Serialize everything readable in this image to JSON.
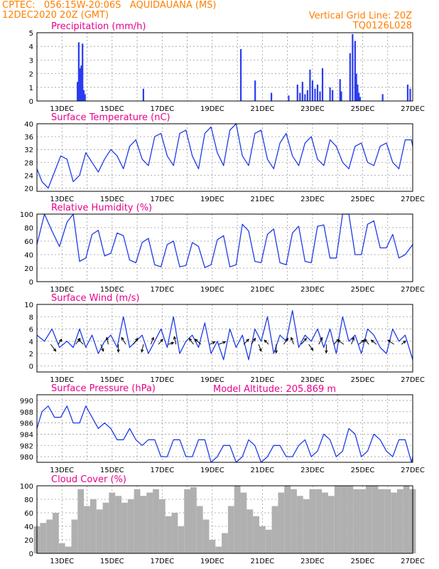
{
  "header": {
    "line1_left": "CPTEC:   056:15W-20:06S   AQUIDAUANA (MS)",
    "line2_left": "12DEC2020 20Z (GMT)",
    "line1_right": "Vertical Grid Line: 20Z",
    "line2_right": "TQ0126L028"
  },
  "colors": {
    "header": "#ff7f00",
    "title": "#e8008c",
    "series": "#1f3be8",
    "bars": "#2a3cf0",
    "cloud": "#b0b0b0"
  },
  "x_labels": [
    "13DEC",
    "15DEC",
    "17DEC",
    "19DEC",
    "21DEC",
    "23DEC",
    "25DEC",
    "27DEC"
  ],
  "x_label_days": [
    1,
    3,
    5,
    7,
    9,
    11,
    13,
    15
  ],
  "x_range_days": [
    0,
    15
  ],
  "model_altitude": "Model Altitude: 205.869 m",
  "chart_data": [
    {
      "type": "bar",
      "title": "Precipitation (mm/h)",
      "ylim": [
        0,
        5
      ],
      "yticks": [
        0,
        1,
        2,
        3,
        4,
        5
      ],
      "x_unit": "days since 12DEC2020 20Z",
      "x": [
        1.62,
        1.67,
        1.72,
        1.77,
        1.82,
        1.87,
        1.92,
        4.25,
        8.14,
        8.71,
        9.36,
        10.05,
        10.4,
        10.5,
        10.6,
        10.7,
        10.8,
        10.9,
        11.0,
        11.1,
        11.2,
        11.3,
        11.4,
        11.7,
        11.8,
        12.1,
        12.15,
        12.5,
        12.6,
        12.7,
        12.75,
        12.8,
        12.85,
        12.9,
        13.8,
        14.8,
        14.9
      ],
      "values": [
        1.4,
        4.3,
        2.4,
        2.6,
        4.2,
        0.8,
        0.5,
        0.9,
        3.8,
        1.5,
        0.6,
        0.4,
        1.2,
        0.6,
        1.4,
        0.5,
        0.8,
        2.3,
        1.5,
        0.9,
        1.2,
        0.7,
        2.4,
        1.0,
        0.8,
        1.6,
        0.7,
        3.5,
        4.9,
        4.4,
        2.0,
        1.2,
        0.6,
        0.3,
        0.5,
        1.2,
        0.9
      ]
    },
    {
      "type": "line",
      "title": "Surface Temperature (nC)",
      "ylim": [
        19,
        40
      ],
      "yticks": [
        20,
        24,
        28,
        32,
        36,
        40
      ],
      "x_unit": "days since 12DEC2020 20Z",
      "series": [
        {
          "x": [
            0,
            0.2,
            0.45,
            0.7,
            0.95,
            1.2,
            1.45,
            1.7,
            1.95,
            2.2,
            2.45,
            2.7,
            2.95,
            3.2,
            3.45,
            3.7,
            3.95,
            4.2,
            4.45,
            4.7,
            4.95,
            5.2,
            5.45,
            5.7,
            5.95,
            6.2,
            6.45,
            6.7,
            6.95,
            7.2,
            7.45,
            7.7,
            7.95,
            8.2,
            8.45,
            8.7,
            8.95,
            9.2,
            9.45,
            9.7,
            9.95,
            10.2,
            10.45,
            10.7,
            10.95,
            11.2,
            11.45,
            11.7,
            11.95,
            12.2,
            12.45,
            12.7,
            12.95,
            13.2,
            13.45,
            13.7,
            13.95,
            14.2,
            14.45,
            14.7,
            14.95,
            15
          ],
          "values": [
            26,
            22,
            20,
            25,
            30,
            29,
            22,
            24,
            31,
            28,
            25,
            29,
            32,
            30,
            26,
            33,
            35,
            29,
            27,
            36,
            37,
            30,
            27,
            37,
            38,
            30,
            26,
            37,
            39,
            31,
            27,
            38,
            40,
            30,
            27,
            37,
            38,
            29,
            26,
            34,
            37,
            30,
            27,
            34,
            36,
            29,
            27,
            35,
            33,
            28,
            26,
            33,
            34,
            28,
            27,
            33,
            34,
            28,
            26,
            35,
            35,
            33
          ]
        }
      ]
    },
    {
      "type": "line",
      "title": "Relative Humidity (%)",
      "ylim": [
        0,
        100
      ],
      "yticks": [
        0,
        20,
        40,
        60,
        80,
        100
      ],
      "x_unit": "days since 12DEC2020 20Z",
      "series": [
        {
          "x": [
            0,
            0.3,
            0.6,
            0.9,
            1.2,
            1.45,
            1.7,
            1.95,
            2.2,
            2.45,
            2.7,
            2.95,
            3.2,
            3.45,
            3.7,
            3.95,
            4.2,
            4.45,
            4.7,
            4.95,
            5.2,
            5.45,
            5.7,
            5.95,
            6.2,
            6.45,
            6.7,
            6.95,
            7.2,
            7.45,
            7.7,
            7.95,
            8.2,
            8.45,
            8.7,
            8.95,
            9.2,
            9.45,
            9.7,
            9.95,
            10.2,
            10.45,
            10.7,
            10.95,
            11.2,
            11.45,
            11.7,
            11.95,
            12.2,
            12.45,
            12.7,
            12.95,
            13.2,
            13.45,
            13.7,
            13.95,
            14.2,
            14.45,
            14.7,
            15
          ],
          "values": [
            55,
            100,
            75,
            52,
            88,
            100,
            30,
            35,
            70,
            76,
            38,
            42,
            72,
            68,
            32,
            28,
            58,
            64,
            25,
            22,
            55,
            60,
            22,
            24,
            58,
            52,
            21,
            25,
            62,
            68,
            22,
            25,
            85,
            75,
            30,
            28,
            70,
            78,
            28,
            25,
            72,
            82,
            30,
            28,
            82,
            84,
            35,
            35,
            100,
            100,
            40,
            40,
            85,
            90,
            50,
            50,
            70,
            35,
            40,
            55
          ]
        }
      ]
    },
    {
      "type": "line",
      "title": "Surface Wind (m/s)",
      "ylim": [
        -1,
        10
      ],
      "yticks": [
        0,
        2,
        4,
        6,
        8,
        10
      ],
      "x_unit": "days since 12DEC2020 20Z",
      "series": [
        {
          "x": [
            0,
            0.3,
            0.6,
            0.9,
            1.2,
            1.45,
            1.7,
            1.95,
            2.2,
            2.45,
            2.7,
            2.95,
            3.2,
            3.45,
            3.7,
            3.95,
            4.2,
            4.45,
            4.7,
            4.95,
            5.2,
            5.45,
            5.7,
            5.95,
            6.2,
            6.45,
            6.7,
            6.95,
            7.2,
            7.45,
            7.7,
            7.95,
            8.2,
            8.45,
            8.7,
            8.95,
            9.2,
            9.45,
            9.7,
            9.95,
            10.2,
            10.45,
            10.7,
            10.95,
            11.2,
            11.45,
            11.7,
            11.95,
            12.2,
            12.45,
            12.7,
            12.95,
            13.2,
            13.45,
            13.7,
            13.95,
            14.2,
            14.45,
            14.7,
            15
          ],
          "values": [
            5,
            4,
            6,
            3,
            4,
            3,
            6,
            3,
            5,
            2,
            4,
            5,
            3,
            8,
            3,
            4,
            5,
            2,
            4,
            6,
            3,
            8,
            2,
            4,
            5,
            3,
            7,
            2,
            4,
            1,
            6,
            3,
            5,
            1,
            6,
            4,
            8,
            2,
            5,
            4,
            9,
            3,
            5,
            4,
            6,
            3,
            6,
            2,
            8,
            4,
            5,
            2,
            6,
            5,
            3,
            2,
            6,
            4,
            5,
            1
          ]
        }
      ],
      "wind_arrows": {
        "x": [
          0.55,
          0.85,
          1.55,
          1.85,
          2.55,
          2.85,
          3.25,
          3.55,
          3.85,
          4.25,
          4.55,
          4.85,
          5.25,
          5.55,
          6.25,
          6.55,
          6.9,
          7.25,
          8.25,
          8.55,
          8.85,
          9.25,
          9.55,
          9.85,
          10.25,
          10.55,
          10.85,
          11.25,
          11.55,
          11.85,
          12.25,
          12.55,
          12.85,
          13.25,
          13.55,
          14.25,
          14.55
        ],
        "u": [
          0.6,
          0.4,
          0.5,
          -0.6,
          0.3,
          -0.2,
          0.0,
          -0.5,
          0.5,
          -0.2,
          0.3,
          0.5,
          0.6,
          -0.2,
          -0.5,
          -0.7,
          0.6,
          0.8,
          0.6,
          0.5,
          0.3,
          -0.5,
          0.0,
          0.5,
          -0.3,
          0.6,
          0.5,
          0.4,
          0.0,
          0.6,
          -0.7,
          0.3,
          0.6,
          -0.5,
          -0.6,
          -0.7,
          0.5
        ],
        "v": [
          -0.8,
          0.6,
          0.7,
          0.6,
          -0.8,
          0.8,
          -0.9,
          0.8,
          0.7,
          -0.9,
          0.8,
          0.6,
          0.2,
          0.9,
          0.7,
          0.6,
          0.3,
          0.3,
          0.6,
          0.7,
          -0.8,
          0.5,
          -1.0,
          0.7,
          0.8,
          0.7,
          -0.7,
          0.8,
          -1.0,
          0.6,
          0.5,
          0.8,
          0.5,
          0.6,
          0.5,
          0.5,
          0.4
        ]
      }
    },
    {
      "type": "line",
      "title": "Surface Pressure (hPa)",
      "ylim": [
        979,
        991
      ],
      "yticks": [
        980,
        982,
        984,
        986,
        988,
        990
      ],
      "x_unit": "days since 12DEC2020 20Z",
      "series": [
        {
          "x": [
            0,
            0.2,
            0.45,
            0.7,
            0.95,
            1.2,
            1.45,
            1.7,
            1.95,
            2.2,
            2.45,
            2.7,
            2.95,
            3.2,
            3.45,
            3.7,
            3.95,
            4.2,
            4.45,
            4.7,
            4.95,
            5.2,
            5.45,
            5.7,
            5.95,
            6.2,
            6.45,
            6.7,
            6.95,
            7.2,
            7.45,
            7.7,
            7.95,
            8.2,
            8.45,
            8.7,
            8.95,
            9.2,
            9.45,
            9.7,
            9.95,
            10.2,
            10.45,
            10.7,
            10.95,
            11.2,
            11.45,
            11.7,
            11.95,
            12.2,
            12.45,
            12.7,
            12.95,
            13.2,
            13.45,
            13.7,
            13.95,
            14.2,
            14.45,
            14.7,
            14.95,
            15
          ],
          "values": [
            985,
            988,
            989,
            987,
            987,
            989,
            986,
            986,
            989,
            987,
            985,
            986,
            985,
            983,
            983,
            985,
            983,
            982,
            983,
            983,
            980,
            980,
            983,
            983,
            980,
            980,
            983,
            983,
            979,
            980,
            982,
            982,
            979,
            980,
            983,
            982,
            979,
            980,
            982,
            982,
            980,
            980,
            982,
            983,
            980,
            981,
            984,
            983,
            980,
            981,
            985,
            984,
            980,
            981,
            984,
            983,
            981,
            980,
            983,
            983,
            979,
            980
          ]
        }
      ]
    },
    {
      "type": "bar",
      "title": "Cloud Cover (%)",
      "ylim": [
        0,
        100
      ],
      "yticks": [
        0,
        20,
        40,
        60,
        80,
        100
      ],
      "x_unit": "days since 12DEC2020 20Z",
      "x": [
        0,
        0.25,
        0.5,
        0.75,
        1.0,
        1.25,
        1.5,
        1.75,
        2.0,
        2.25,
        2.5,
        2.75,
        3.0,
        3.25,
        3.5,
        3.75,
        4.0,
        4.25,
        4.5,
        4.75,
        5.0,
        5.25,
        5.5,
        5.75,
        6.0,
        6.25,
        6.5,
        6.75,
        7.0,
        7.25,
        7.5,
        7.75,
        8.0,
        8.25,
        8.5,
        8.75,
        9.0,
        9.25,
        9.5,
        9.75,
        10.0,
        10.25,
        10.5,
        10.75,
        11.0,
        11.25,
        11.5,
        11.75,
        12.0,
        12.25,
        12.5,
        12.75,
        13.0,
        13.25,
        13.5,
        13.75,
        14.0,
        14.25,
        14.5,
        14.75,
        15
      ],
      "values": [
        40,
        45,
        50,
        60,
        15,
        10,
        50,
        95,
        70,
        80,
        65,
        75,
        90,
        85,
        75,
        80,
        95,
        85,
        90,
        95,
        80,
        55,
        60,
        40,
        95,
        98,
        70,
        50,
        20,
        10,
        30,
        70,
        100,
        90,
        65,
        55,
        40,
        35,
        70,
        90,
        100,
        95,
        85,
        80,
        95,
        95,
        90,
        85,
        100,
        100,
        100,
        95,
        95,
        100,
        100,
        95,
        95,
        90,
        95,
        100,
        95
      ]
    }
  ]
}
